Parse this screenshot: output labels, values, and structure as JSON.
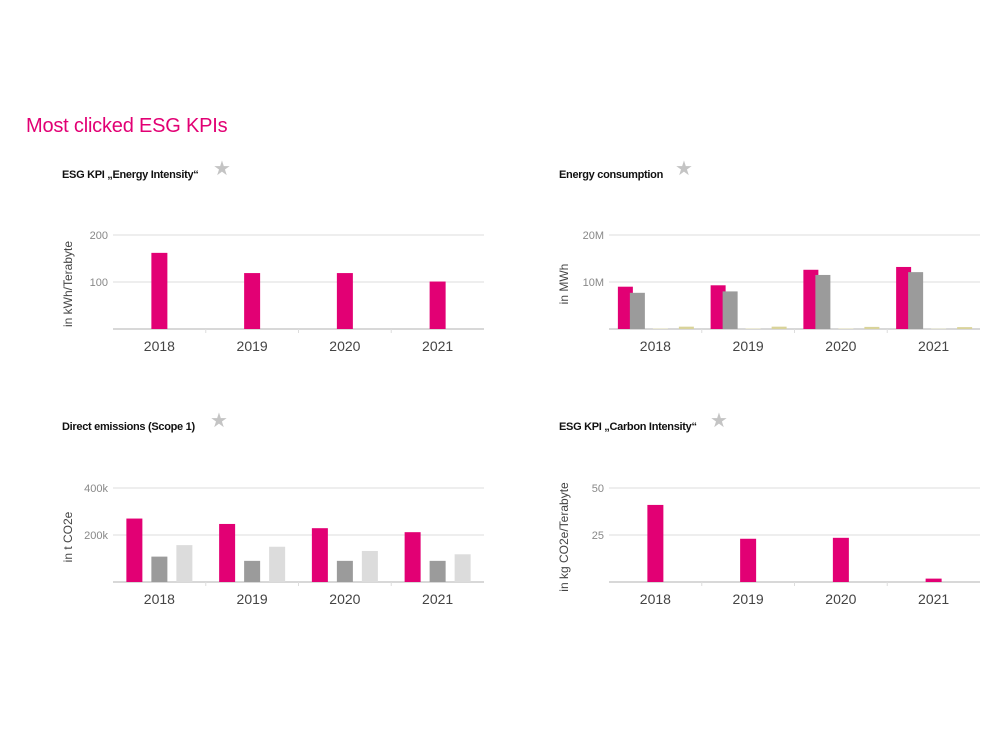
{
  "page": {
    "title": "Most clicked ESG KPIs"
  },
  "colors": {
    "accent": "#e20074",
    "gray": "#9b9b9b",
    "light_gray": "#dcdcdc",
    "pale_yellow": "#efeccf",
    "olive_yellow": "#d9d39a",
    "grid": "#dcdcdc"
  },
  "chart_data": [
    {
      "type": "bar",
      "title": "ESG KPI „Energy Intensity“",
      "icon": "star-icon",
      "ylabel": "in kWh/Terabyte",
      "categories": [
        "2018",
        "2019",
        "2020",
        "2021"
      ],
      "yticks": [
        {
          "value": 100,
          "label": "100"
        },
        {
          "value": 200,
          "label": "200"
        }
      ],
      "ylim": [
        0,
        200
      ],
      "grid": true,
      "series": [
        {
          "color": "#e20074",
          "values": [
            162,
            119,
            119,
            101
          ]
        }
      ]
    },
    {
      "type": "bar",
      "title": "Energy consumption",
      "icon": "star-icon",
      "ylabel": "in MWh",
      "categories": [
        "2018",
        "2019",
        "2020",
        "2021"
      ],
      "yticks": [
        {
          "value": 10000000,
          "label": "10M"
        },
        {
          "value": 20000000,
          "label": "20M"
        }
      ],
      "ylim": [
        0,
        20000000
      ],
      "grid": true,
      "series": [
        {
          "color": "#e20074",
          "values": [
            9000000,
            9300000,
            12600000,
            13200000
          ]
        },
        {
          "color": "#9b9b9b",
          "values": [
            7700000,
            8000000,
            11500000,
            12100000
          ]
        },
        {
          "color": "#efeccf",
          "values": [
            150000,
            150000,
            150000,
            100000
          ]
        },
        {
          "color": "#d9d39a",
          "values": [
            500000,
            500000,
            450000,
            400000
          ]
        }
      ]
    },
    {
      "type": "bar",
      "title": "Direct emissions (Scope 1)",
      "icon": "star-icon",
      "ylabel": "in t CO2e",
      "categories": [
        "2018",
        "2019",
        "2020",
        "2021"
      ],
      "yticks": [
        {
          "value": 200000,
          "label": "200k"
        },
        {
          "value": 400000,
          "label": "400k"
        }
      ],
      "ylim": [
        0,
        400000
      ],
      "grid": true,
      "series": [
        {
          "color": "#e20074",
          "values": [
            270000,
            247000,
            229000,
            212000
          ]
        },
        {
          "color": "#9b9b9b",
          "values": [
            108000,
            90000,
            90000,
            90000
          ]
        },
        {
          "color": "#dcdcdc",
          "values": [
            157000,
            150000,
            132000,
            118000
          ]
        }
      ]
    },
    {
      "type": "bar",
      "title": "ESG KPI „Carbon Intensity“",
      "icon": "star-icon",
      "ylabel": "in kg CO2e/Terabyte",
      "categories": [
        "2018",
        "2019",
        "2020",
        "2021"
      ],
      "yticks": [
        {
          "value": 25,
          "label": "25"
        },
        {
          "value": 50,
          "label": "50"
        }
      ],
      "ylim": [
        0,
        50
      ],
      "grid": true,
      "series": [
        {
          "color": "#e20074",
          "values": [
            41,
            23,
            23.5,
            1.8
          ]
        }
      ]
    }
  ]
}
